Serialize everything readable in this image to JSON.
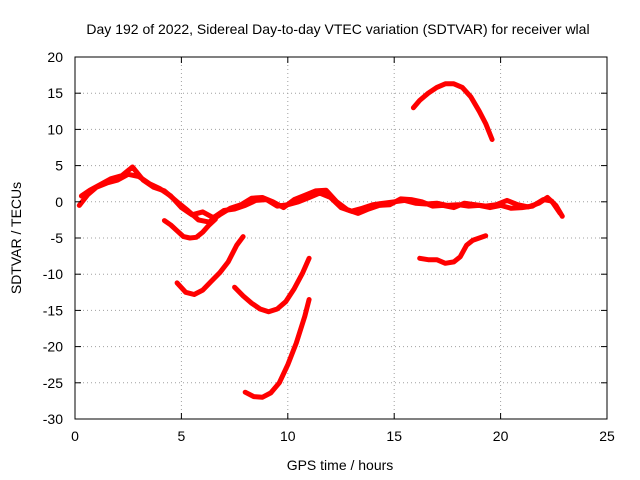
{
  "chart_data": {
    "type": "line",
    "title": "Day 192 of 2022, Sidereal Day-to-day VTEC variation (SDTVAR) for receiver wlal",
    "xlabel": "GPS time / hours",
    "ylabel": "SDTVAR / TECUs",
    "xlim": [
      0,
      25
    ],
    "ylim": [
      -30,
      20
    ],
    "xticks": [
      0,
      5,
      10,
      15,
      20,
      25
    ],
    "yticks": [
      -30,
      -25,
      -20,
      -15,
      -10,
      -5,
      0,
      5,
      10,
      15,
      20
    ],
    "grid": true,
    "color": "#ff0000",
    "series": [
      {
        "name": "main-band-a",
        "points": [
          [
            0.2,
            -0.5
          ],
          [
            0.6,
            1.0
          ],
          [
            1.0,
            2.0
          ],
          [
            1.5,
            2.6
          ],
          [
            2.0,
            3.0
          ],
          [
            2.5,
            3.8
          ],
          [
            3.0,
            3.5
          ],
          [
            3.5,
            2.5
          ],
          [
            4.0,
            1.8
          ],
          [
            4.5,
            0.8
          ],
          [
            5.0,
            -0.8
          ],
          [
            5.5,
            -1.8
          ],
          [
            6.0,
            -1.4
          ],
          [
            6.5,
            -2.2
          ],
          [
            7.0,
            -1.2
          ],
          [
            7.5,
            -1.0
          ],
          [
            8.0,
            -0.5
          ],
          [
            8.5,
            0.2
          ],
          [
            9.0,
            0.3
          ],
          [
            9.5,
            -0.6
          ],
          [
            10.0,
            -0.4
          ],
          [
            10.5,
            0.0
          ],
          [
            11.0,
            0.6
          ],
          [
            11.5,
            1.2
          ],
          [
            12.0,
            0.6
          ],
          [
            12.5,
            -0.8
          ],
          [
            13.0,
            -1.3
          ],
          [
            13.5,
            -0.9
          ],
          [
            14.0,
            -0.4
          ],
          [
            14.5,
            -0.2
          ],
          [
            15.0,
            0.0
          ],
          [
            15.5,
            0.2
          ],
          [
            16.0,
            -0.2
          ],
          [
            16.5,
            -0.3
          ],
          [
            17.0,
            -0.2
          ],
          [
            17.5,
            -0.5
          ],
          [
            18.0,
            -0.4
          ],
          [
            18.5,
            -0.6
          ],
          [
            19.0,
            -0.5
          ],
          [
            19.5,
            -0.8
          ],
          [
            20.0,
            -0.5
          ],
          [
            20.5,
            -0.9
          ],
          [
            21.0,
            -0.8
          ],
          [
            21.5,
            -0.6
          ],
          [
            22.0,
            0.3
          ],
          [
            22.4,
            0.1
          ],
          [
            22.8,
            -1.6
          ]
        ]
      },
      {
        "name": "main-band-b",
        "points": [
          [
            0.3,
            0.8
          ],
          [
            0.7,
            1.6
          ],
          [
            1.2,
            2.4
          ],
          [
            1.7,
            3.2
          ],
          [
            2.2,
            3.6
          ],
          [
            2.7,
            4.8
          ],
          [
            3.2,
            3.0
          ],
          [
            3.7,
            2.0
          ],
          [
            4.2,
            1.5
          ],
          [
            4.8,
            0.0
          ],
          [
            5.3,
            -1.2
          ],
          [
            5.8,
            -2.5
          ],
          [
            6.3,
            -2.8
          ],
          [
            6.8,
            -1.8
          ],
          [
            7.3,
            -0.9
          ],
          [
            7.8,
            -0.4
          ],
          [
            8.3,
            0.5
          ],
          [
            8.8,
            0.6
          ],
          [
            9.3,
            0.0
          ],
          [
            9.8,
            -0.8
          ],
          [
            10.3,
            0.3
          ],
          [
            10.8,
            0.9
          ],
          [
            11.3,
            1.5
          ],
          [
            11.8,
            1.6
          ],
          [
            12.3,
            0.0
          ],
          [
            12.8,
            -1.1
          ],
          [
            13.3,
            -1.6
          ],
          [
            13.8,
            -1.0
          ],
          [
            14.3,
            -0.5
          ],
          [
            14.8,
            -0.4
          ],
          [
            15.3,
            0.4
          ],
          [
            15.8,
            0.3
          ],
          [
            16.3,
            0.0
          ],
          [
            16.8,
            -0.6
          ],
          [
            17.3,
            -0.5
          ],
          [
            17.8,
            -0.8
          ],
          [
            18.3,
            -0.2
          ],
          [
            18.8,
            -0.4
          ],
          [
            19.3,
            -0.6
          ],
          [
            19.8,
            -0.4
          ],
          [
            20.3,
            0.2
          ],
          [
            20.8,
            -0.4
          ],
          [
            21.3,
            -0.7
          ],
          [
            21.8,
            -0.2
          ],
          [
            22.2,
            0.6
          ],
          [
            22.6,
            -0.5
          ],
          [
            22.9,
            -2.0
          ]
        ]
      },
      {
        "name": "arc-4-6",
        "points": [
          [
            4.2,
            -2.6
          ],
          [
            4.5,
            -3.2
          ],
          [
            4.8,
            -4.0
          ],
          [
            5.1,
            -4.8
          ],
          [
            5.4,
            -5.0
          ],
          [
            5.7,
            -4.9
          ],
          [
            6.0,
            -4.2
          ],
          [
            6.3,
            -3.2
          ],
          [
            6.6,
            -2.4
          ]
        ]
      },
      {
        "name": "rise-5-8",
        "points": [
          [
            4.8,
            -11.2
          ],
          [
            5.2,
            -12.5
          ],
          [
            5.6,
            -12.8
          ],
          [
            6.0,
            -12.2
          ],
          [
            6.4,
            -11.0
          ],
          [
            6.8,
            -9.8
          ],
          [
            7.2,
            -8.3
          ],
          [
            7.6,
            -6.0
          ],
          [
            7.9,
            -4.8
          ]
        ]
      },
      {
        "name": "arc-7-11",
        "points": [
          [
            7.5,
            -11.8
          ],
          [
            7.9,
            -13.0
          ],
          [
            8.3,
            -14.0
          ],
          [
            8.7,
            -14.8
          ],
          [
            9.1,
            -15.2
          ],
          [
            9.5,
            -14.8
          ],
          [
            9.9,
            -13.8
          ],
          [
            10.3,
            -12.0
          ],
          [
            10.7,
            -9.8
          ],
          [
            11.0,
            -7.8
          ]
        ]
      },
      {
        "name": "steep-8-11",
        "points": [
          [
            8.0,
            -26.3
          ],
          [
            8.4,
            -26.9
          ],
          [
            8.8,
            -27.0
          ],
          [
            9.2,
            -26.4
          ],
          [
            9.6,
            -25.0
          ],
          [
            10.0,
            -22.5
          ],
          [
            10.4,
            -19.5
          ],
          [
            10.8,
            -15.8
          ],
          [
            11.0,
            -13.5
          ]
        ]
      },
      {
        "name": "peak-16-19",
        "points": [
          [
            15.9,
            13.0
          ],
          [
            16.2,
            14.0
          ],
          [
            16.6,
            15.0
          ],
          [
            17.0,
            15.8
          ],
          [
            17.4,
            16.3
          ],
          [
            17.8,
            16.3
          ],
          [
            18.2,
            15.8
          ],
          [
            18.6,
            14.5
          ],
          [
            19.0,
            12.5
          ],
          [
            19.3,
            10.8
          ],
          [
            19.6,
            8.6
          ]
        ]
      },
      {
        "name": "low-16-19",
        "points": [
          [
            16.2,
            -7.8
          ],
          [
            16.6,
            -8.0
          ],
          [
            17.0,
            -8.0
          ],
          [
            17.4,
            -8.5
          ],
          [
            17.8,
            -8.3
          ],
          [
            18.1,
            -7.6
          ],
          [
            18.4,
            -6.0
          ],
          [
            18.7,
            -5.3
          ],
          [
            19.0,
            -5.0
          ],
          [
            19.3,
            -4.7
          ]
        ]
      }
    ]
  }
}
